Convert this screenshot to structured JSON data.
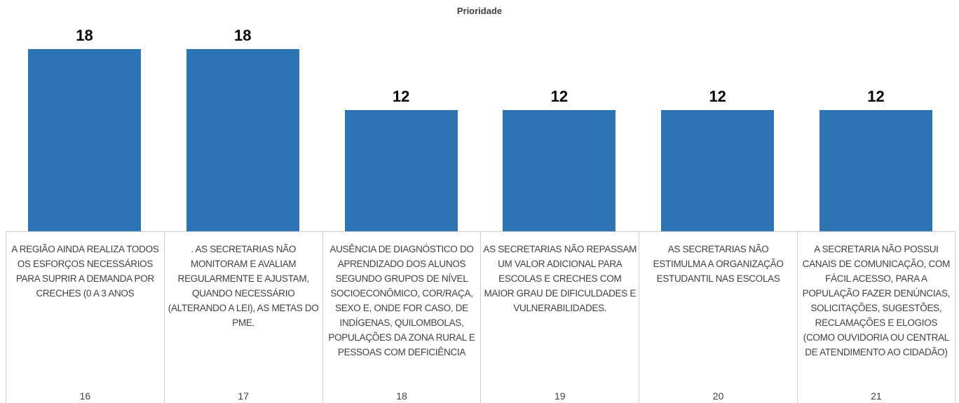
{
  "chart_data": {
    "type": "bar",
    "title": "Prioridade",
    "categories": [
      "A REGIÃO AINDA REALIZA TODOS OS ESFORÇOS NECESSÁRIOS PARA SUPRIR A DEMANDA POR CRECHES (0 A 3 ANOS",
      ". AS SECRETARIAS NÃO MONITORAM E AVALIAM REGULARMENTE E AJUSTAM, QUANDO NECESSÁRIO (ALTERANDO A LEI), AS METAS DO PME.",
      "AUSÊNCIA DE DIAGNÓSTICO DO APRENDIZADO DOS ALUNOS SEGUNDO GRUPOS DE NÍVEL SOCIOECONÔMICO, COR/RAÇA, SEXO E, ONDE FOR CASO, DE INDÍGENAS, QUILOMBOLAS, POPULAÇÕES DA ZONA RURAL E PESSOAS COM DEFICIÊNCIA",
      "AS SECRETARIAS NÃO REPASSAM UM VALOR ADICIONAL PARA ESCOLAS E CRECHES COM MAIOR GRAU DE DIFICULDADES E VULNERABILIDADES.",
      "AS SECRETARIAS NÃO ESTIMULMA A ORGANIZAÇÃO ESTUDANTIL NAS ESCOLAS",
      "A SECRETARIA NÃO POSSUI CANAIS DE COMUNICAÇÃO, COM FÁCIL ACESSO, PARA A POPULAÇÃO FAZER DENÚNCIAS, SOLICITAÇÕES, SUGESTÕES, RECLAMAÇÕES E ELOGIOS (COMO OUVIDORIA OU CENTRAL DE ATENDIMENTO AO CIDADÃO)"
    ],
    "category_numbers": [
      16,
      17,
      18,
      19,
      20,
      21
    ],
    "values": [
      18,
      18,
      12,
      12,
      12,
      12
    ],
    "color": "#2e75b6"
  }
}
